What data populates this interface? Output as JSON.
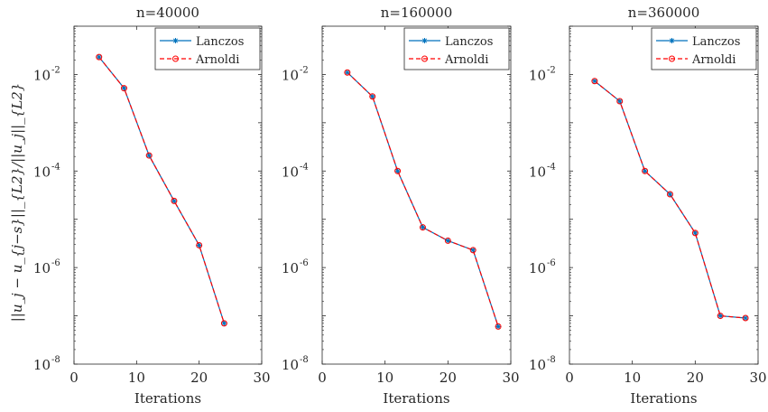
{
  "ylabel_text": "||u_j − u_{j−s}||_{L2}/||u_j||_{L2}",
  "colors": {
    "lanczos": "#0072BD",
    "arnoldi": "#FF0000",
    "axes": "#262626"
  },
  "chart_data": [
    {
      "type": "line",
      "title": "n=40000",
      "xlabel": "Iterations",
      "ylabel": "||u_j − u_{j−s}||_{L2}/||u_j||_{L2}",
      "xlim": [
        0,
        30
      ],
      "ylim": [
        1e-08,
        0.1
      ],
      "yscale": "log",
      "xticks": [
        0,
        10,
        20,
        30
      ],
      "yticks": [
        1e-08,
        1e-06,
        0.0001,
        0.01
      ],
      "ytick_base": "10",
      "ytick_exponents": [
        "-8",
        "-6",
        "-4",
        "-2"
      ],
      "grid": false,
      "legend_position": "top-right",
      "series": [
        {
          "name": "Lanczos",
          "x": [
            4,
            8,
            12,
            16,
            20,
            24
          ],
          "y": [
            0.023,
            0.0052,
            0.00021,
            2.4e-05,
            2.9e-06,
            7e-08
          ]
        },
        {
          "name": "Arnoldi",
          "x": [
            4,
            8,
            12,
            16,
            20,
            24
          ],
          "y": [
            0.023,
            0.0052,
            0.00021,
            2.4e-05,
            2.9e-06,
            7e-08
          ]
        }
      ]
    },
    {
      "type": "line",
      "title": "n=160000",
      "xlabel": "Iterations",
      "xlim": [
        0,
        30
      ],
      "ylim": [
        1e-08,
        0.1
      ],
      "yscale": "log",
      "xticks": [
        0,
        10,
        20,
        30
      ],
      "yticks": [
        1e-08,
        1e-06,
        0.0001,
        0.01
      ],
      "ytick_base": "10",
      "ytick_exponents": [
        "-8",
        "-6",
        "-4",
        "-2"
      ],
      "grid": false,
      "legend_position": "top-right",
      "series": [
        {
          "name": "Lanczos",
          "x": [
            4,
            8,
            12,
            16,
            20,
            24,
            28
          ],
          "y": [
            0.011,
            0.0035,
            0.0001,
            6.8e-06,
            3.6e-06,
            2.3e-06,
            6e-08
          ]
        },
        {
          "name": "Arnoldi",
          "x": [
            4,
            8,
            12,
            16,
            20,
            24,
            28
          ],
          "y": [
            0.011,
            0.0035,
            0.0001,
            6.8e-06,
            3.6e-06,
            2.3e-06,
            6e-08
          ]
        }
      ]
    },
    {
      "type": "line",
      "title": "n=360000",
      "xlabel": "Iterations",
      "xlim": [
        0,
        30
      ],
      "ylim": [
        1e-08,
        0.1
      ],
      "yscale": "log",
      "xticks": [
        0,
        10,
        20,
        30
      ],
      "yticks": [
        1e-08,
        1e-06,
        0.0001,
        0.01
      ],
      "ytick_base": "10",
      "ytick_exponents": [
        "-8",
        "-6",
        "-4",
        "-2"
      ],
      "grid": false,
      "legend_position": "top-right",
      "series": [
        {
          "name": "Lanczos",
          "x": [
            4,
            8,
            12,
            16,
            20,
            24,
            28
          ],
          "y": [
            0.0073,
            0.0028,
            0.0001,
            3.3e-05,
            5.2e-06,
            1e-07,
            9e-08
          ]
        },
        {
          "name": "Arnoldi",
          "x": [
            4,
            8,
            12,
            16,
            20,
            24,
            28
          ],
          "y": [
            0.0073,
            0.0028,
            0.0001,
            3.3e-05,
            5.2e-06,
            1e-07,
            9e-08
          ]
        }
      ]
    }
  ]
}
